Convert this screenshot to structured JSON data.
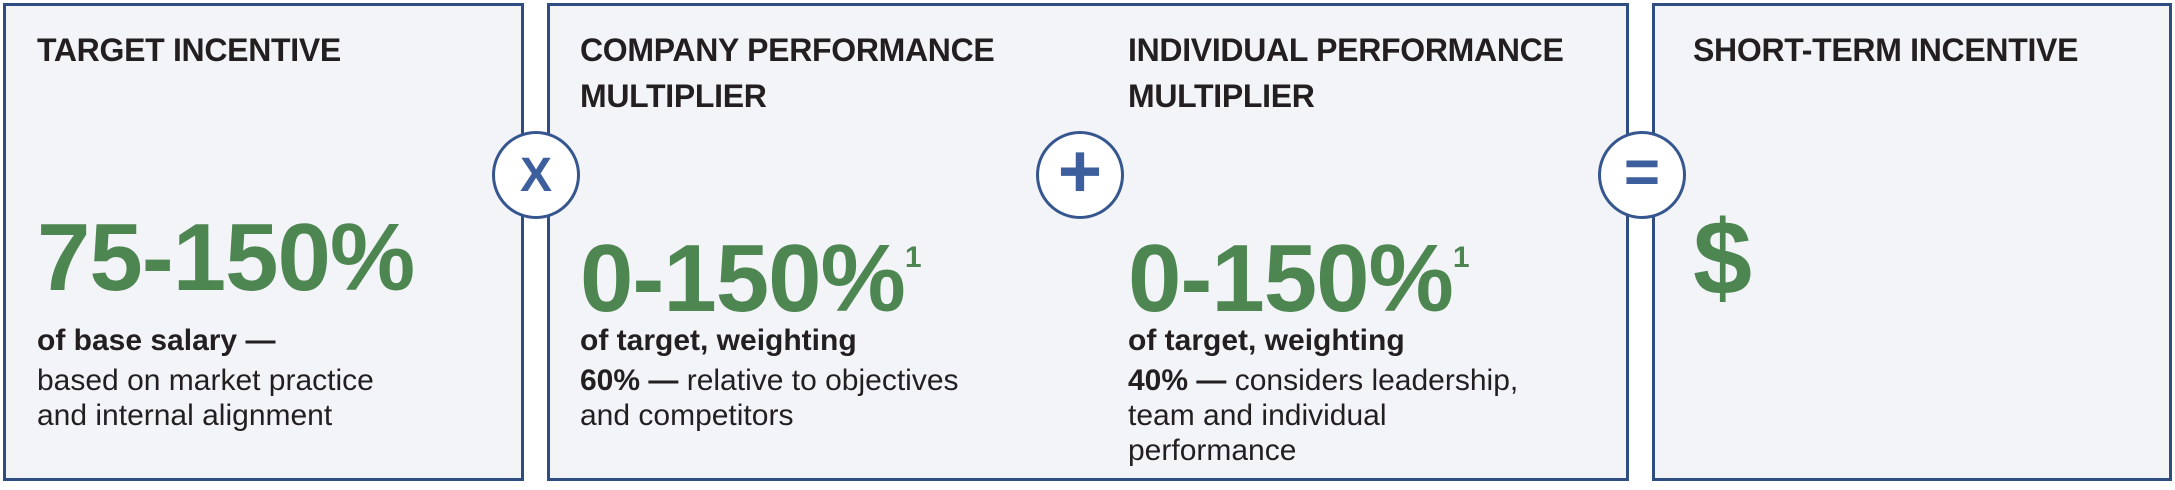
{
  "palette": {
    "page_bg": "#ffffff",
    "panel_bg": "#f2f4f8",
    "border_navy": "#2f4d80",
    "operator_blue": "#3d5f9d",
    "accent_green": "#4e8652",
    "text_dark": "#231f20"
  },
  "operators": [
    {
      "name": "multiply",
      "symbol": "X"
    },
    {
      "name": "plus",
      "symbol": "+"
    },
    {
      "name": "equals",
      "symbol": "="
    }
  ],
  "boxes": [
    {
      "sections": [
        {
          "heading_line1": "TARGET INCENTIVE",
          "heading_line2": "",
          "value": "75-150%",
          "value_superscript": "",
          "bold_lead": "of base salary —",
          "lines": [
            {
              "b": "",
              "r": "based on market practice"
            },
            {
              "b": "",
              "r": "and internal alignment"
            }
          ]
        }
      ]
    },
    {
      "sections": [
        {
          "heading_line1": "COMPANY PERFORMANCE",
          "heading_line2": "MULTIPLIER",
          "value": "0-150%",
          "value_superscript": "1",
          "bold_lead": "of target, weighting",
          "lines": [
            {
              "b": "60% — ",
              "r": "relative to objectives"
            },
            {
              "b": "",
              "r": "and competitors"
            }
          ]
        },
        {
          "heading_line1": "INDIVIDUAL PERFORMANCE",
          "heading_line2": "MULTIPLIER",
          "value": "0-150%",
          "value_superscript": "1",
          "bold_lead": "of target, weighting",
          "lines": [
            {
              "b": "40% — ",
              "r": "considers leadership,"
            },
            {
              "b": "",
              "r": "team and individual"
            },
            {
              "b": "",
              "r": "performance"
            }
          ]
        }
      ]
    },
    {
      "sections": [
        {
          "heading_line1": "SHORT-TERM INCENTIVE",
          "heading_line2": "",
          "value": "$",
          "value_superscript": "",
          "bold_lead": "",
          "lines": []
        }
      ]
    }
  ]
}
